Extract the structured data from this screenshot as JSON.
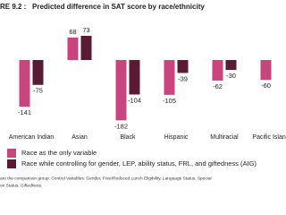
{
  "chart_data": {
    "type": "bar",
    "figure_label": "RE 9.2 :",
    "title": "Predicted difference in SAT score by race/ethnicity",
    "categories": [
      "American Indian",
      "Asian",
      "Black",
      "Hispanic",
      "Multiracial",
      "Pacific Islande"
    ],
    "series": [
      {
        "name": "Race as the only variable",
        "color": "#c9457d",
        "values": [
          -141,
          68,
          -182,
          -105,
          -62,
          -60
        ]
      },
      {
        "name": "Race while controlling for gender, LEP, ability status, FRL, and giftedness (AIG)",
        "color": "#5a1a35",
        "values": [
          -75,
          73,
          -104,
          -39,
          -30,
          null
        ]
      }
    ],
    "footnote": [
      "are the comparison group. Control Variables: Gender, Free/Reduced Lunch Eligibility, Language Status, Special",
      "on Status, Giftedness."
    ]
  }
}
